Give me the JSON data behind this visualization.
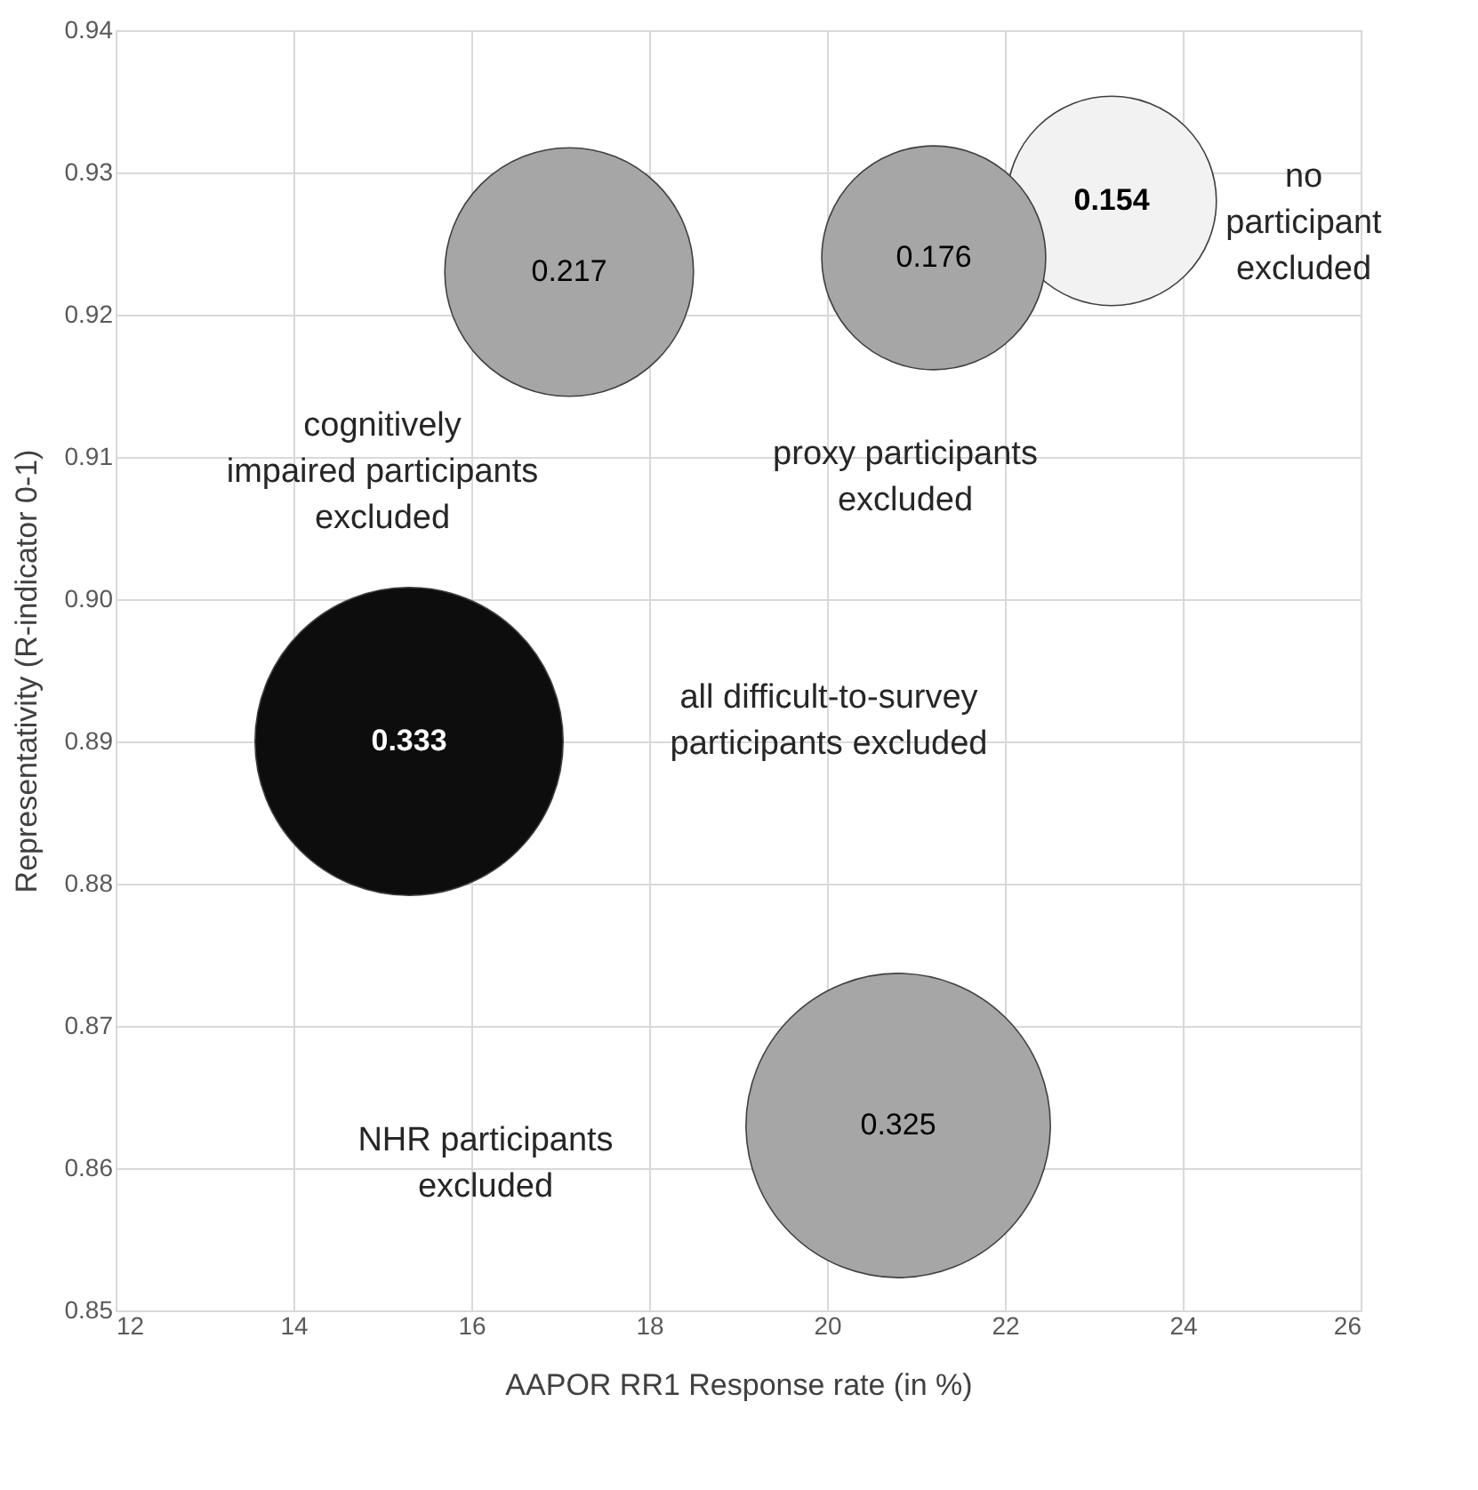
{
  "chart_data": {
    "type": "bubble",
    "xlabel": "AAPOR RR1 Response rate (in %)",
    "ylabel": "Representativity (R-indicator 0-1)",
    "x": [
      23.2,
      21.2,
      17.1,
      15.3,
      20.8
    ],
    "values": [
      0.928,
      0.924,
      0.923,
      0.89,
      0.863
    ],
    "sizes": [
      0.154,
      0.176,
      0.217,
      0.333,
      0.325
    ],
    "value_labels": [
      "0.154",
      "0.176",
      "0.217",
      "0.333",
      "0.325"
    ],
    "colors": [
      "#f2f2f2",
      "#a6a6a6",
      "#a6a6a6",
      "#0d0d0d",
      "#a6a6a6"
    ],
    "xlim": [
      12,
      26
    ],
    "xticks": [
      12,
      14,
      16,
      18,
      20,
      22,
      24,
      26
    ],
    "ylim": [
      0.85,
      0.94
    ],
    "yticks": [
      0.85,
      0.86,
      0.87,
      0.88,
      0.89,
      {
        "value": 0.9,
        "label": "0.90"
      },
      0.91,
      0.92,
      0.93,
      0.94
    ],
    "grid": true,
    "annotations": [
      "no\nparticipant\nexcluded",
      "cognitively\nimpaired participants\nexcluded",
      "proxy participants\nexcluded",
      "all difficult-to-survey\nparticipants excluded",
      "NHR participants\nexcluded"
    ]
  }
}
